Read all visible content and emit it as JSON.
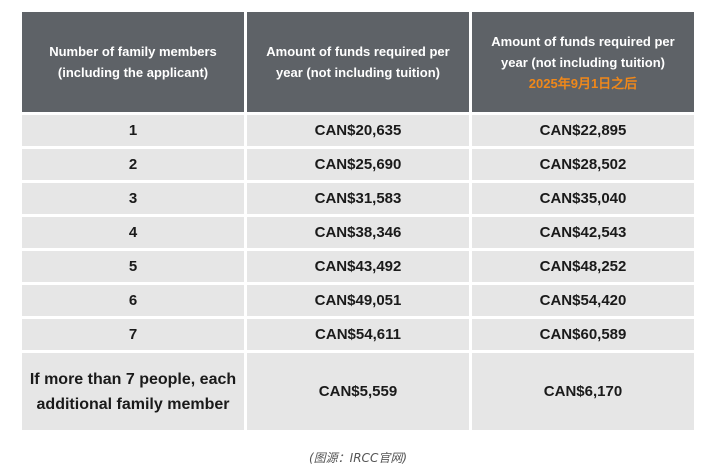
{
  "table": {
    "headers": [
      "Number of family members (including  the applicant)",
      "Amount of funds required per year (not  including tuition)",
      "Amount of funds required per year (not including tuition)"
    ],
    "header_note": "2025年9月1日之后",
    "rows": [
      [
        "1",
        "CAN$20,635",
        "CAN$22,895"
      ],
      [
        "2",
        "CAN$25,690",
        "CAN$28,502"
      ],
      [
        "3",
        "CAN$31,583",
        "CAN$35,040"
      ],
      [
        "4",
        "CAN$38,346",
        "CAN$42,543"
      ],
      [
        "5",
        "CAN$43,492",
        "CAN$48,252"
      ],
      [
        "6",
        "CAN$49,051",
        "CAN$54,420"
      ],
      [
        "7",
        "CAN$54,611",
        "CAN$60,589"
      ],
      [
        "If more than 7 people, each additional  family member",
        "CAN$5,559",
        "CAN$6,170"
      ]
    ]
  },
  "caption": "(图源：IRCC官网)",
  "colors": {
    "header_bg": "#5e6267",
    "cell_bg": "#e6e6e6",
    "note_color": "#f0881a"
  }
}
